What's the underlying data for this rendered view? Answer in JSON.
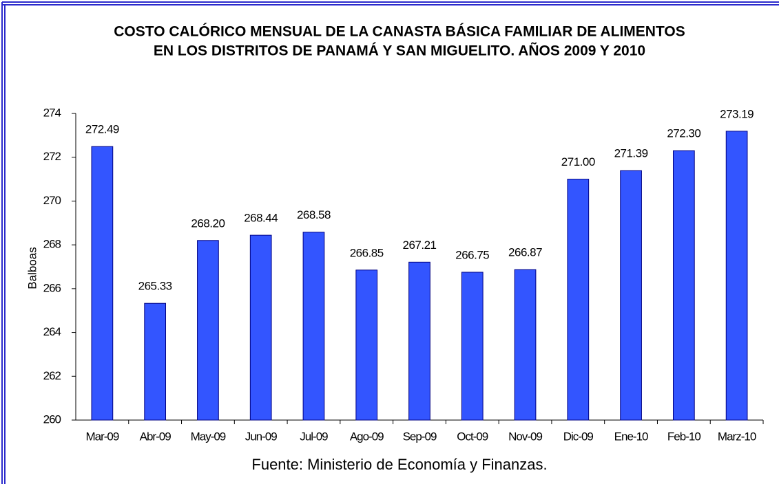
{
  "chart_data": {
    "type": "bar",
    "title": [
      "COSTO CALÓRICO MENSUAL DE LA CANASTA BÁSICA FAMILIAR DE ALIMENTOS",
      "EN LOS DISTRITOS DE PANAMÁ Y SAN MIGUELITO. AÑOS 2009 Y 2010"
    ],
    "y_label": "Balboas",
    "source": "Fuente: Ministerio de Economía y Finanzas.",
    "categories": [
      "Mar-09",
      "Abr-09",
      "May-09",
      "Jun-09",
      "Jul-09",
      "Ago-09",
      "Sep-09",
      "Oct-09",
      "Nov-09",
      "Dic-09",
      "Ene-10",
      "Feb-10",
      "Marz-10"
    ],
    "values": [
      272.49,
      265.33,
      268.2,
      268.44,
      268.58,
      266.85,
      267.21,
      266.75,
      266.87,
      271.0,
      271.39,
      272.3,
      273.19
    ],
    "value_labels": [
      "272.49",
      "265.33",
      "268.20",
      "268.44",
      "268.58",
      "266.85",
      "267.21",
      "266.75",
      "266.87",
      "271.00",
      "271.39",
      "272.30",
      "273.19"
    ],
    "color": "#3355ff",
    "ylim": [
      260,
      274
    ],
    "yticks": [
      260,
      262,
      264,
      266,
      268,
      270,
      272,
      274
    ],
    "grid": false
  }
}
